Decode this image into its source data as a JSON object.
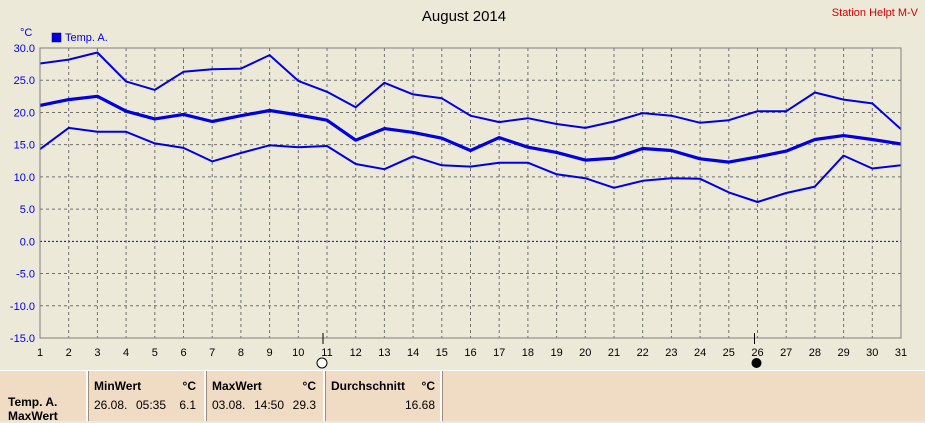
{
  "station": "Station Helpt M-V",
  "unit_label": "°C",
  "legend": {
    "label": "Temp. A.",
    "color": "#0000e0"
  },
  "chart_data": {
    "type": "line",
    "title": "August 2014",
    "x": [
      1,
      2,
      3,
      4,
      5,
      6,
      7,
      8,
      9,
      10,
      11,
      12,
      13,
      14,
      15,
      16,
      17,
      18,
      19,
      20,
      21,
      22,
      23,
      24,
      25,
      26,
      27,
      28,
      29,
      30,
      31
    ],
    "ylim": [
      -15,
      30
    ],
    "yticks": [
      "-15.0",
      "-10.0",
      "-5.0",
      "0.0",
      "5.0",
      "10.0",
      "15.0",
      "20.0",
      "25.0",
      "30.0"
    ],
    "xticks": [
      "1",
      "2",
      "3",
      "4",
      "5",
      "6",
      "7",
      "8",
      "9",
      "10",
      "11",
      "12",
      "13",
      "14",
      "15",
      "16",
      "17",
      "18",
      "19",
      "20",
      "21",
      "22",
      "23",
      "24",
      "25",
      "26",
      "27",
      "28",
      "29",
      "30",
      "31"
    ],
    "grid": true,
    "zero_line": true,
    "series": [
      {
        "values": [
          27.6,
          28.2,
          29.3,
          24.8,
          23.5,
          26.3,
          26.7,
          26.8,
          28.9,
          24.9,
          23.2,
          20.8,
          24.6,
          22.8,
          22.2,
          19.5,
          18.5,
          19.1,
          18.2,
          17.6,
          18.6,
          19.9,
          19.5,
          18.4,
          18.8,
          20.2,
          20.2,
          23.1,
          22.0,
          21.4,
          17.4
        ]
      },
      {
        "values": [
          21.1,
          22.0,
          22.5,
          20.2,
          19.0,
          19.7,
          18.6,
          19.5,
          20.3,
          19.6,
          18.8,
          15.7,
          17.5,
          16.9,
          16.0,
          14.1,
          16.1,
          14.6,
          13.8,
          12.6,
          12.9,
          14.4,
          14.1,
          12.8,
          12.3,
          13.1,
          14.0,
          15.8,
          16.4,
          15.8,
          15.1
        ]
      },
      {
        "values": [
          14.3,
          17.6,
          17.0,
          17.0,
          15.2,
          14.5,
          12.4,
          13.7,
          14.9,
          14.6,
          14.8,
          12.0,
          11.2,
          13.2,
          11.8,
          11.6,
          12.2,
          12.2,
          10.4,
          9.8,
          8.3,
          9.4,
          9.8,
          9.7,
          7.6,
          6.1,
          7.5,
          8.5,
          13.3,
          11.3,
          11.8
        ]
      }
    ]
  },
  "markers": {
    "open_day": "11",
    "filled_day": "26"
  },
  "table": {
    "row_label": "Temp. A.",
    "row_label2": "MaxWert",
    "min_header": "MinWert",
    "min_unit": "°C",
    "min_date": "26.08.",
    "min_time": "05:35",
    "min_value": "6.1",
    "max_header": "MaxWert",
    "max_unit": "°C",
    "max_date": "03.08.",
    "max_time": "14:50",
    "max_value": "29.3",
    "avg_header": "Durchschnitt",
    "avg_unit": "°C",
    "avg_value": "16.68"
  }
}
